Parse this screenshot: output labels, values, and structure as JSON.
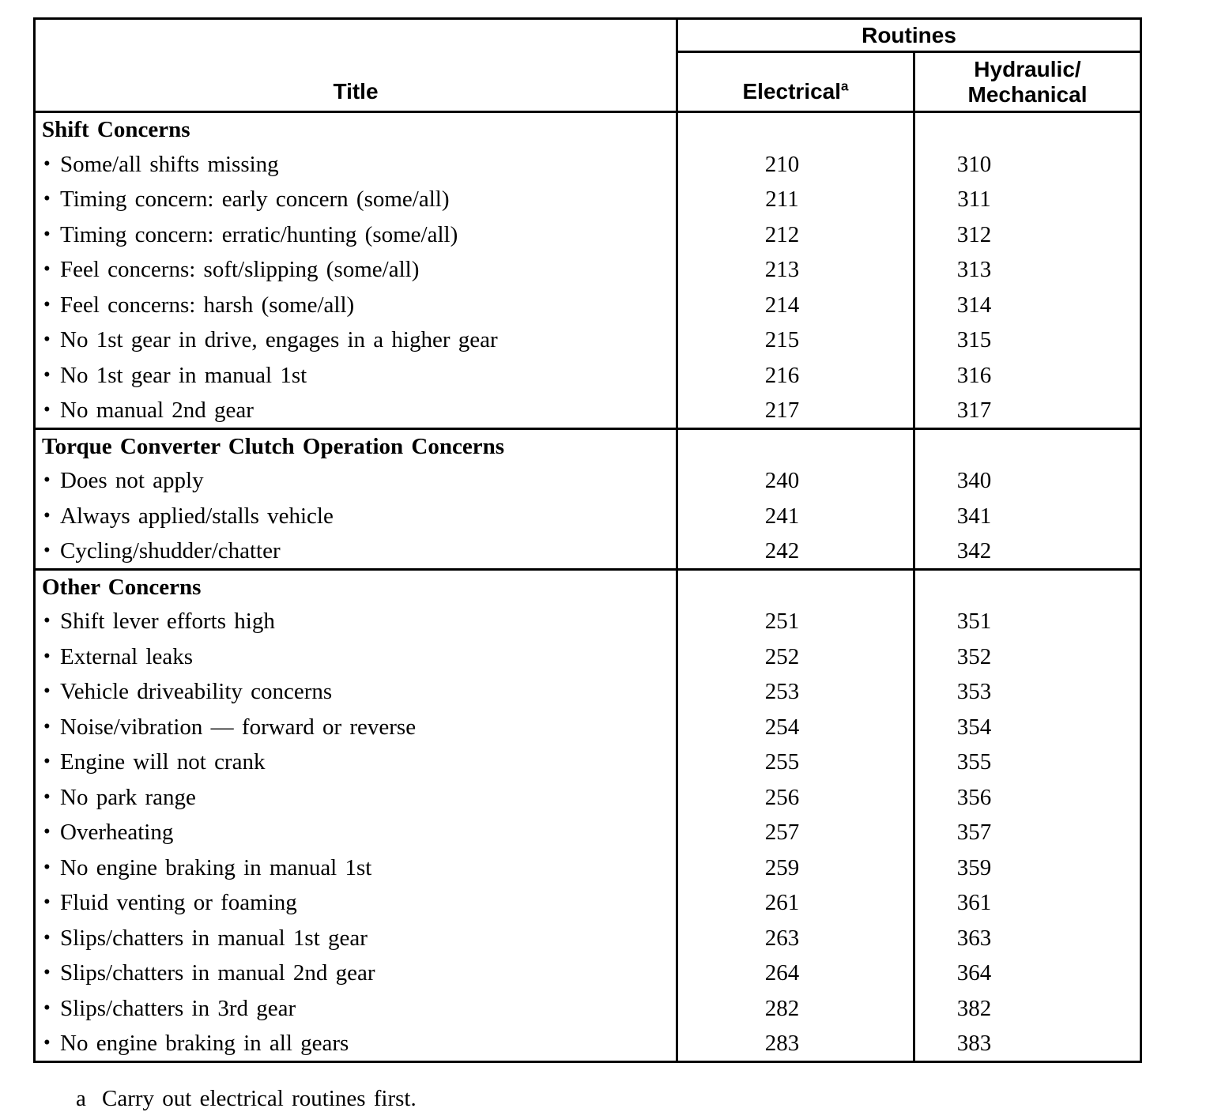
{
  "page": {
    "background": "#ffffff",
    "text_color": "#000000",
    "border_color": "#000000"
  },
  "table": {
    "bullet_char": "•",
    "header": {
      "title_label": "Title",
      "routines_label": "Routines",
      "col_electrical": {
        "label": "Electrical",
        "superscript": "a"
      },
      "col_hydraulic": {
        "line1": "Hydraulic/",
        "line2": "Mechanical"
      }
    },
    "sections": [
      {
        "heading": "Shift Concerns",
        "rows": [
          {
            "title": "Some/all shifts missing",
            "electrical": "210",
            "hydraulic": "310"
          },
          {
            "title": "Timing concern: early concern (some/all)",
            "electrical": "211",
            "hydraulic": "311"
          },
          {
            "title": "Timing concern: erratic/hunting (some/all)",
            "electrical": "212",
            "hydraulic": "312"
          },
          {
            "title": "Feel concerns: soft/slipping (some/all)",
            "electrical": "213",
            "hydraulic": "313"
          },
          {
            "title": "Feel concerns: harsh (some/all)",
            "electrical": "214",
            "hydraulic": "314"
          },
          {
            "title": "No 1st gear in drive, engages in a higher gear",
            "electrical": "215",
            "hydraulic": "315"
          },
          {
            "title": "No 1st gear in manual 1st",
            "electrical": "216",
            "hydraulic": "316"
          },
          {
            "title": "No manual 2nd gear",
            "electrical": "217",
            "hydraulic": "317"
          }
        ]
      },
      {
        "heading": "Torque Converter Clutch Operation Concerns",
        "rows": [
          {
            "title": "Does not apply",
            "electrical": "240",
            "hydraulic": "340"
          },
          {
            "title": "Always applied/stalls vehicle",
            "electrical": "241",
            "hydraulic": "341"
          },
          {
            "title": "Cycling/shudder/chatter",
            "electrical": "242",
            "hydraulic": "342"
          }
        ]
      },
      {
        "heading": "Other Concerns",
        "rows": [
          {
            "title": "Shift lever efforts high",
            "electrical": "251",
            "hydraulic": "351"
          },
          {
            "title": "External leaks",
            "electrical": "252",
            "hydraulic": "352"
          },
          {
            "title": "Vehicle driveability concerns",
            "electrical": "253",
            "hydraulic": "353"
          },
          {
            "title": "Noise/vibration — forward or reverse",
            "electrical": "254",
            "hydraulic": "354"
          },
          {
            "title": "Engine will not crank",
            "electrical": "255",
            "hydraulic": "355"
          },
          {
            "title": "No park range",
            "electrical": "256",
            "hydraulic": "356"
          },
          {
            "title": "Overheating",
            "electrical": "257",
            "hydraulic": "357"
          },
          {
            "title": "No engine braking in manual 1st",
            "electrical": "259",
            "hydraulic": "359"
          },
          {
            "title": "Fluid venting or foaming",
            "electrical": "261",
            "hydraulic": "361"
          },
          {
            "title": "Slips/chatters in manual 1st gear",
            "electrical": "263",
            "hydraulic": "363"
          },
          {
            "title": "Slips/chatters in manual 2nd gear",
            "electrical": "264",
            "hydraulic": "364"
          },
          {
            "title": "Slips/chatters in 3rd gear",
            "electrical": "282",
            "hydraulic": "382"
          },
          {
            "title": "No engine braking in all gears",
            "electrical": "283",
            "hydraulic": "383"
          }
        ]
      }
    ]
  },
  "footnote": {
    "marker": "a",
    "text": "Carry out electrical routines first."
  }
}
